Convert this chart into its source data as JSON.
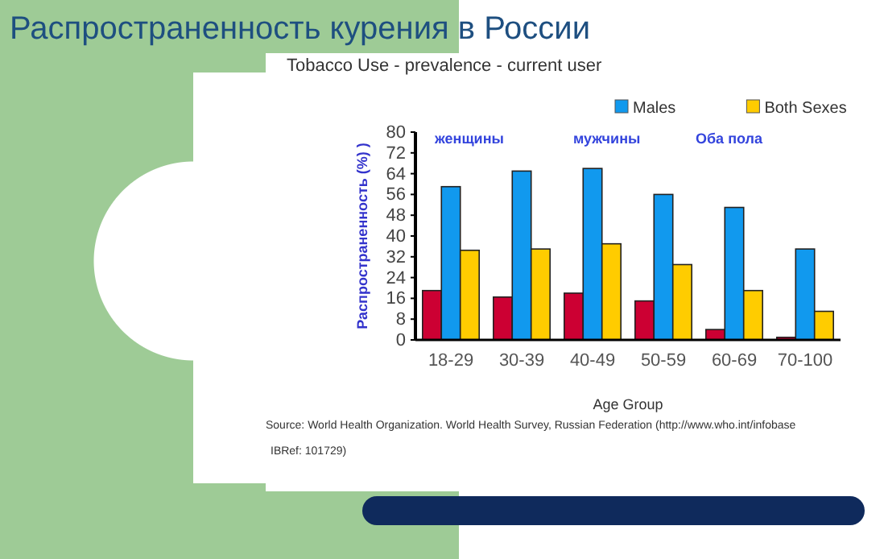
{
  "chart_data": {
    "type": "bar",
    "title": "Распространенность курения в России",
    "subtitle": "Tobacco Use - prevalence - current user",
    "xlabel": "Age Group",
    "ylabel": "Распространенность (%) )",
    "categories": [
      "18-29",
      "30-39",
      "40-49",
      "50-59",
      "60-69",
      "70-100"
    ],
    "series": [
      {
        "color": "#cc0033",
        "values": [
          19,
          16.5,
          18,
          15,
          4,
          1
        ]
      },
      {
        "name": "Males",
        "color": "#1199ee",
        "values": [
          59,
          65,
          66,
          56,
          51,
          35
        ]
      },
      {
        "name": "Both Sexes",
        "color": "#ffcc00",
        "values": [
          34.5,
          35,
          37,
          29,
          19,
          11
        ]
      }
    ],
    "ylim": [
      0,
      80
    ],
    "yticks": [
      0,
      8,
      16,
      24,
      32,
      40,
      48,
      56,
      64,
      72,
      80
    ],
    "grid": false,
    "legend": "top right",
    "annotations": [
      "женщины",
      "мужчины",
      "Оба пола",
      "Source: World Health Organization. World Health Survey, Russian Federation  (http://www.who.int/infobase",
      "IBRef: 101729)"
    ]
  }
}
